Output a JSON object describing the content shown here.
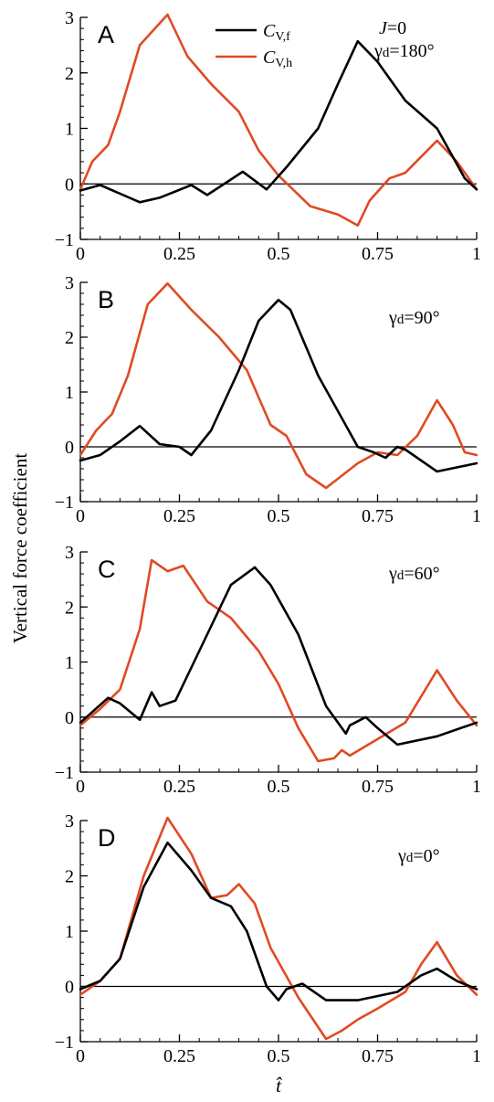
{
  "ylabel": "Vertical force coefficient",
  "xlabel": "t̂",
  "legend": [
    {
      "base": "C",
      "sub": "V,f",
      "color": "#000000"
    },
    {
      "base": "C",
      "sub": "V,h",
      "color": "#e04a23"
    }
  ],
  "colors": {
    "f": "#000000",
    "h": "#e04a23"
  },
  "chart_data": [
    {
      "type": "line",
      "panel": "A",
      "annotations": [
        {
          "lhs": "J",
          "rhs": "=0"
        },
        {
          "lhs": "γd",
          "rhs": "=180°"
        }
      ],
      "xlim": [
        0,
        1
      ],
      "ylim": [
        -1,
        3
      ],
      "xticks": [
        0,
        0.25,
        0.5,
        0.75,
        1
      ],
      "xtick_labels": [
        "0",
        "0.25",
        "0.5",
        "0.75",
        "1"
      ],
      "yticks": [
        -1,
        0,
        1,
        2,
        3
      ],
      "ytick_labels": [
        "−1",
        "0",
        "1",
        "2",
        "3"
      ],
      "series": [
        {
          "name": "CV,f",
          "color": "#000000",
          "x": [
            0,
            0.05,
            0.15,
            0.2,
            0.28,
            0.32,
            0.41,
            0.47,
            0.52,
            0.6,
            0.65,
            0.7,
            0.75,
            0.82,
            0.9,
            0.97,
            1
          ],
          "y": [
            -0.12,
            -0.02,
            -0.33,
            -0.25,
            -0.02,
            -0.2,
            0.22,
            -0.1,
            0.3,
            1.0,
            1.8,
            2.57,
            2.2,
            1.5,
            1.0,
            0.1,
            -0.1
          ]
        },
        {
          "name": "CV,h",
          "color": "#e04a23",
          "x": [
            0,
            0.03,
            0.07,
            0.1,
            0.15,
            0.22,
            0.27,
            0.33,
            0.4,
            0.45,
            0.5,
            0.58,
            0.65,
            0.7,
            0.73,
            0.78,
            0.82,
            0.9,
            0.95,
            1
          ],
          "y": [
            -0.1,
            0.4,
            0.7,
            1.3,
            2.5,
            3.05,
            2.3,
            1.8,
            1.3,
            0.6,
            0.15,
            -0.4,
            -0.55,
            -0.75,
            -0.3,
            0.1,
            0.2,
            0.78,
            0.4,
            -0.1
          ]
        }
      ]
    },
    {
      "type": "line",
      "panel": "B",
      "annotations": [
        {
          "lhs": "γd",
          "rhs": "=90°"
        }
      ],
      "xlim": [
        0,
        1
      ],
      "ylim": [
        -1,
        3
      ],
      "xticks": [
        0,
        0.25,
        0.5,
        0.75,
        1
      ],
      "xtick_labels": [
        "0",
        "0.25",
        "0.5",
        "0.75",
        "1"
      ],
      "yticks": [
        -1,
        0,
        1,
        2,
        3
      ],
      "ytick_labels": [
        "−1",
        "0",
        "1",
        "2",
        "3"
      ],
      "series": [
        {
          "name": "CV,f",
          "color": "#000000",
          "x": [
            0,
            0.05,
            0.1,
            0.15,
            0.2,
            0.25,
            0.28,
            0.33,
            0.4,
            0.45,
            0.5,
            0.53,
            0.6,
            0.7,
            0.74,
            0.77,
            0.8,
            0.82,
            0.9,
            1
          ],
          "y": [
            -0.25,
            -0.15,
            0.1,
            0.38,
            0.05,
            0.0,
            -0.15,
            0.3,
            1.4,
            2.3,
            2.68,
            2.5,
            1.3,
            0.0,
            -0.1,
            -0.2,
            0.0,
            -0.05,
            -0.45,
            -0.3
          ]
        },
        {
          "name": "CV,h",
          "color": "#e04a23",
          "x": [
            0,
            0.04,
            0.08,
            0.12,
            0.17,
            0.22,
            0.28,
            0.35,
            0.42,
            0.48,
            0.52,
            0.57,
            0.62,
            0.7,
            0.75,
            0.8,
            0.85,
            0.9,
            0.94,
            0.97,
            1
          ],
          "y": [
            -0.15,
            0.3,
            0.6,
            1.3,
            2.6,
            2.98,
            2.5,
            2.0,
            1.4,
            0.4,
            0.2,
            -0.5,
            -0.75,
            -0.3,
            -0.1,
            -0.15,
            0.2,
            0.85,
            0.4,
            -0.1,
            -0.15
          ]
        }
      ]
    },
    {
      "type": "line",
      "panel": "C",
      "annotations": [
        {
          "lhs": "γd",
          "rhs": "=60°"
        }
      ],
      "xlim": [
        0,
        1
      ],
      "ylim": [
        -1,
        3
      ],
      "xticks": [
        0,
        0.25,
        0.5,
        0.75,
        1
      ],
      "xtick_labels": [
        "0",
        "0.25",
        "0.5",
        "0.75",
        "1"
      ],
      "yticks": [
        -1,
        0,
        1,
        2,
        3
      ],
      "ytick_labels": [
        "−1",
        "0",
        "1",
        "2",
        "3"
      ],
      "series": [
        {
          "name": "CV,f",
          "color": "#000000",
          "x": [
            0,
            0.07,
            0.1,
            0.15,
            0.18,
            0.2,
            0.24,
            0.3,
            0.38,
            0.44,
            0.48,
            0.55,
            0.62,
            0.66,
            0.67,
            0.68,
            0.72,
            0.75,
            0.8,
            0.9,
            1
          ],
          "y": [
            -0.1,
            0.35,
            0.25,
            -0.05,
            0.45,
            0.2,
            0.3,
            1.2,
            2.4,
            2.72,
            2.4,
            1.5,
            0.2,
            -0.2,
            -0.3,
            -0.15,
            0.0,
            -0.2,
            -0.5,
            -0.35,
            -0.1
          ]
        },
        {
          "name": "CV,h",
          "color": "#e04a23",
          "x": [
            0,
            0.05,
            0.1,
            0.15,
            0.18,
            0.22,
            0.26,
            0.32,
            0.38,
            0.45,
            0.5,
            0.55,
            0.6,
            0.64,
            0.66,
            0.68,
            0.75,
            0.82,
            0.9,
            0.95,
            1
          ],
          "y": [
            -0.15,
            0.15,
            0.5,
            1.6,
            2.85,
            2.65,
            2.75,
            2.1,
            1.8,
            1.2,
            0.6,
            -0.2,
            -0.8,
            -0.75,
            -0.6,
            -0.7,
            -0.4,
            -0.1,
            0.85,
            0.3,
            -0.15
          ]
        }
      ]
    },
    {
      "type": "line",
      "panel": "D",
      "annotations": [
        {
          "lhs": "γd",
          "rhs": "=0°"
        }
      ],
      "xlim": [
        0,
        1
      ],
      "ylim": [
        -1,
        3
      ],
      "xticks": [
        0,
        0.25,
        0.5,
        0.75,
        1
      ],
      "xtick_labels": [
        "0",
        "0.25",
        "0.5",
        "0.75",
        "1"
      ],
      "yticks": [
        -1,
        0,
        1,
        2,
        3
      ],
      "ytick_labels": [
        "−1",
        "0",
        "1",
        "2",
        "3"
      ],
      "series": [
        {
          "name": "CV,f",
          "color": "#000000",
          "x": [
            0,
            0.05,
            0.1,
            0.16,
            0.22,
            0.28,
            0.33,
            0.38,
            0.42,
            0.47,
            0.5,
            0.52,
            0.56,
            0.62,
            0.7,
            0.8,
            0.86,
            0.9,
            0.95,
            1
          ],
          "y": [
            -0.05,
            0.1,
            0.5,
            1.8,
            2.6,
            2.1,
            1.6,
            1.45,
            1.0,
            0.0,
            -0.25,
            -0.05,
            0.05,
            -0.25,
            -0.25,
            -0.1,
            0.2,
            0.32,
            0.1,
            -0.05
          ]
        },
        {
          "name": "CV,h",
          "color": "#e04a23",
          "x": [
            0,
            0.05,
            0.1,
            0.16,
            0.22,
            0.28,
            0.33,
            0.37,
            0.4,
            0.44,
            0.48,
            0.55,
            0.62,
            0.66,
            0.7,
            0.75,
            0.82,
            0.86,
            0.9,
            0.95,
            1
          ],
          "y": [
            -0.15,
            0.1,
            0.5,
            2.0,
            3.05,
            2.4,
            1.6,
            1.65,
            1.85,
            1.5,
            0.7,
            -0.2,
            -0.95,
            -0.8,
            -0.6,
            -0.4,
            -0.1,
            0.4,
            0.8,
            0.2,
            -0.15
          ]
        }
      ]
    }
  ]
}
